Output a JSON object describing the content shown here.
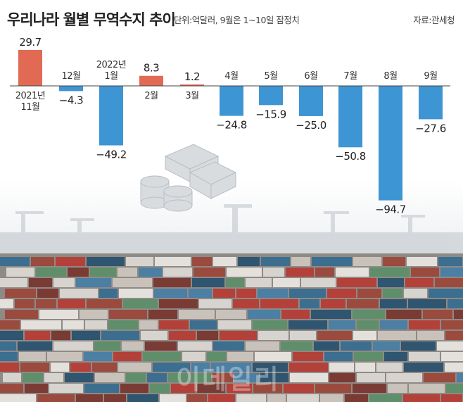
{
  "header": {
    "title": "우리나라 월별 무역수지 추이",
    "note": "단위:억달러, 9월은 1~10일 잠정치",
    "source": "자료:관세청"
  },
  "watermark": "이데일리",
  "colors": {
    "positive": "#e26a55",
    "negative": "#3e95d3",
    "baseline": "#444444",
    "value_text": "#222222",
    "label_text": "#333333"
  },
  "chart_data": {
    "type": "bar",
    "title": "우리나라 월별 무역수지 추이",
    "unit": "억달러",
    "categories": [
      "2021년 11월",
      "12월",
      "2022년 1월",
      "2월",
      "3월",
      "4월",
      "5월",
      "6월",
      "7월",
      "8월",
      "9월"
    ],
    "category_lines": [
      [
        "2021년",
        "11월"
      ],
      [
        "12월"
      ],
      [
        "2022년",
        "1월"
      ],
      [
        "2월"
      ],
      [
        "3월"
      ],
      [
        "4월"
      ],
      [
        "5월"
      ],
      [
        "6월"
      ],
      [
        "7월"
      ],
      [
        "8월"
      ],
      [
        "9월"
      ]
    ],
    "values": [
      29.7,
      -4.3,
      -49.2,
      8.3,
      1.2,
      -24.8,
      -15.9,
      -25.0,
      -50.8,
      -94.7,
      -27.6
    ],
    "value_labels": [
      "29.7",
      "−4.3",
      "−49.2",
      "8.3",
      "1.2",
      "−24.8",
      "−15.9",
      "−25.0",
      "−50.8",
      "−94.7",
      "−27.6"
    ],
    "xlabel": "",
    "ylabel": "",
    "grid": false
  }
}
